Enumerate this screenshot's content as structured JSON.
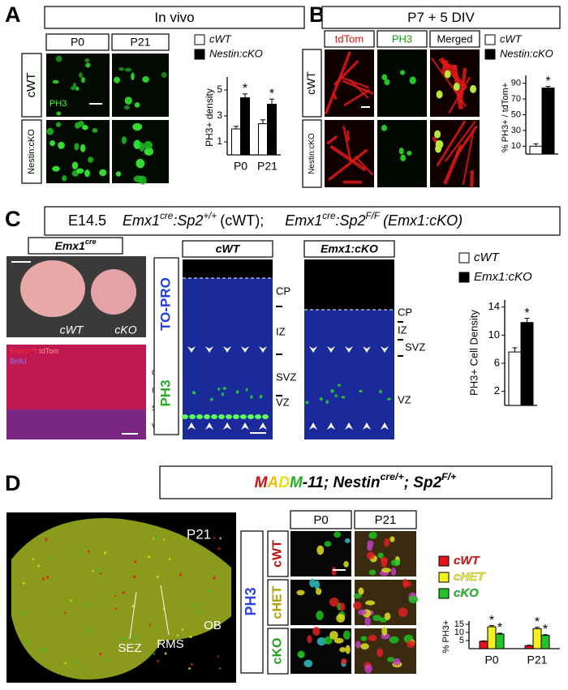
{
  "panels": {
    "A": {
      "letter": "A",
      "title": "In vivo",
      "columns": [
        "P0",
        "P21"
      ],
      "rows": [
        "cWT",
        "Nestin:cKO"
      ],
      "stain": "PH3"
    },
    "B": {
      "letter": "B",
      "title": "P7 + 5 DIV",
      "columns": [
        "tdTom",
        "PH3",
        "Merged"
      ],
      "rows": [
        "cWT",
        "Nestin:cKO"
      ]
    },
    "C": {
      "letter": "C",
      "header": [
        "E14.5",
        "Emx1",
        "cre",
        ":Sp2",
        "+/+",
        "(cWT);",
        "Emx1",
        "cre",
        ":Sp2",
        "F/F",
        "(Emx1:cKO)"
      ],
      "photo_title": [
        "Emx1",
        "cre"
      ],
      "photo_labels": [
        "cWT",
        "cKO"
      ],
      "section_labels": [
        "Emx1",
        "cre",
        ": tdTom",
        "BrdU"
      ],
      "section_layers": [
        "CP",
        "IZ",
        "SVZ",
        "VZ"
      ],
      "stains": [
        "TO-PRO",
        "PH3"
      ],
      "columns": [
        "cWT",
        "Emx1:cKO"
      ],
      "wt_layers": [
        "CP",
        "IZ",
        "SVZ",
        "VZ"
      ],
      "ko_layers": [
        "CP",
        "IZ",
        "SVZ",
        "VZ"
      ]
    },
    "D": {
      "letter": "D",
      "title": [
        "M",
        "A",
        "D",
        "M",
        "-11; Nestin",
        "cre/+",
        "; Sp2",
        "F/+"
      ],
      "brain_labels": [
        "P21",
        "SEZ",
        "RMS",
        "OB"
      ],
      "stain": "PH3",
      "columns": [
        "P0",
        "P21"
      ],
      "rows": [
        "cWT",
        "cHET",
        "cKO"
      ]
    }
  },
  "chart_data": [
    {
      "type": "bar",
      "y_label": "PH3+ density",
      "categories": [
        "P0",
        "P21"
      ],
      "ylim": [
        0,
        6
      ],
      "yticks": [
        1,
        3,
        5
      ],
      "star": "*",
      "series": [
        {
          "name": "cWT",
          "color": "#ffffff",
          "values": [
            2.0,
            2.4
          ],
          "errors": [
            0.2,
            0.3
          ]
        },
        {
          "name": "Nestin:cKO",
          "color": "#000000",
          "values": [
            4.4,
            3.9
          ],
          "errors": [
            0.3,
            0.4
          ]
        }
      ]
    },
    {
      "type": "bar",
      "y_label": "% PH3+ / tdTom+",
      "categories": [
        null
      ],
      "ylim": [
        0,
        100
      ],
      "yticks": [
        10,
        30,
        50,
        70,
        90
      ],
      "star": "*",
      "series": [
        {
          "name": "cWT",
          "color": "#ffffff",
          "values": [
            10
          ],
          "errors": [
            3
          ]
        },
        {
          "name": "Nestin:cKO",
          "color": "#000000",
          "values": [
            84
          ],
          "errors": [
            2
          ]
        }
      ]
    },
    {
      "type": "bar",
      "y_label": "PH3+ Cell Density",
      "categories": [
        null
      ],
      "ylim": [
        0,
        15
      ],
      "yticks": [
        2,
        6,
        10,
        14
      ],
      "star": "*",
      "series": [
        {
          "name": "cWT",
          "color": "#ffffff",
          "values": [
            7.6
          ],
          "errors": [
            0.6
          ]
        },
        {
          "name": "Emx1:cKO",
          "color": "#000000",
          "values": [
            11.8
          ],
          "errors": [
            0.6
          ]
        }
      ]
    },
    {
      "type": "bar",
      "y_label": "% PH3+",
      "categories": [
        "P0",
        "P21"
      ],
      "ylim": [
        0,
        17
      ],
      "yticks": [
        5,
        10,
        15
      ],
      "star": "*",
      "series": [
        {
          "name": "cWT",
          "color": "#e8141c",
          "values": [
            4.5,
            1.8
          ],
          "errors": [
            0.3,
            0.3
          ]
        },
        {
          "name": "cHET",
          "color": "#f5f01e",
          "values": [
            13.5,
            12.3
          ],
          "errors": [
            0.7,
            0.9
          ]
        },
        {
          "name": "cKO",
          "color": "#22c42a",
          "values": [
            9.0,
            8.2
          ],
          "errors": [
            0.5,
            0.4
          ]
        }
      ]
    }
  ]
}
